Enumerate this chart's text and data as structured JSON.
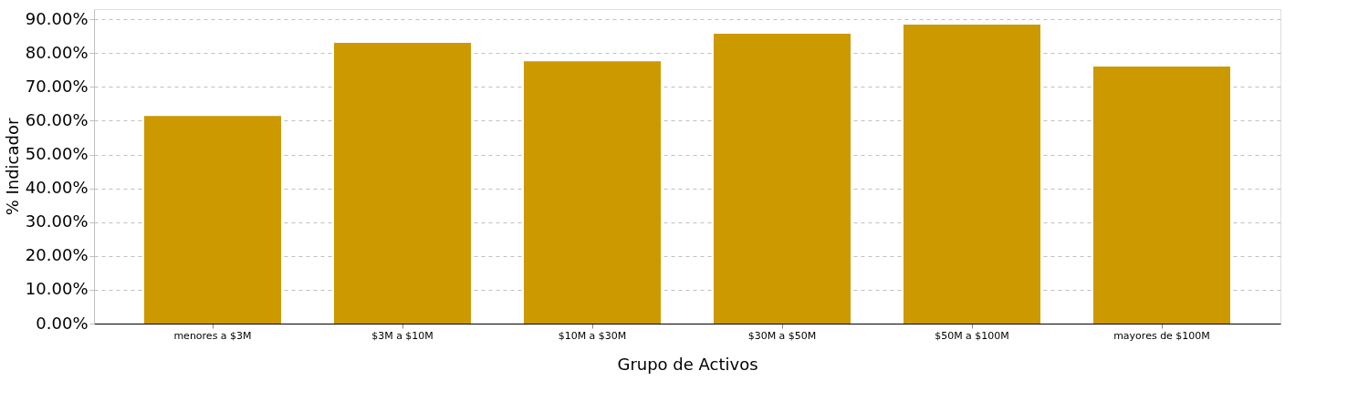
{
  "chart_data": {
    "type": "bar",
    "xlabel": "Grupo de Activos",
    "ylabel": "% Indicador",
    "categories": [
      "menores a $3M",
      "$3M a $10M",
      "$10M a $30M",
      "$30M a $50M",
      "$50M a $100M",
      "mayores de $100M"
    ],
    "values": [
      61.4,
      83.0,
      77.6,
      85.7,
      88.4,
      76.0
    ],
    "color": "#cc9900",
    "ylim": [
      0,
      93
    ],
    "yticks": [
      {
        "value": 0,
        "label": "0.00%"
      },
      {
        "value": 10,
        "label": "10.00%"
      },
      {
        "value": 20,
        "label": "20.00%"
      },
      {
        "value": 30,
        "label": "30.00%"
      },
      {
        "value": 40,
        "label": "40.00%"
      },
      {
        "value": 50,
        "label": "50.00%"
      },
      {
        "value": 60,
        "label": "60.00%"
      },
      {
        "value": 70,
        "label": "70.00%"
      },
      {
        "value": 80,
        "label": "80.00%"
      },
      {
        "value": 90,
        "label": "90.00%"
      }
    ],
    "grid": "y",
    "line_style": "dashed"
  }
}
